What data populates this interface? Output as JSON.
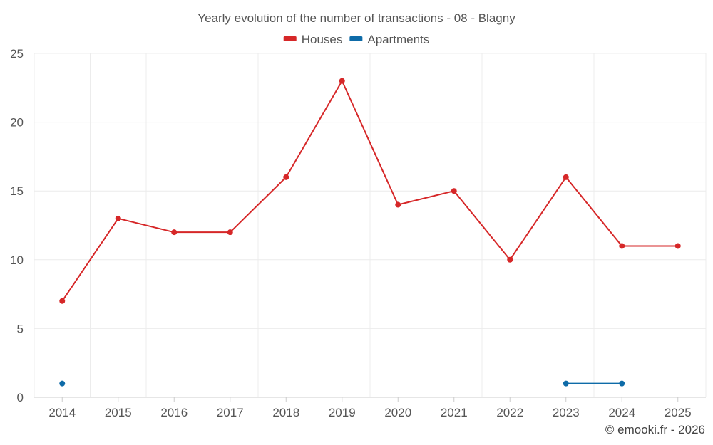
{
  "chart_data": {
    "type": "line",
    "title": "Yearly evolution of the number of transactions - 08 - Blagny",
    "xlabel": "",
    "ylabel": "",
    "categories": [
      "2014",
      "2015",
      "2016",
      "2017",
      "2018",
      "2019",
      "2020",
      "2021",
      "2022",
      "2023",
      "2024",
      "2025"
    ],
    "ylim": [
      0,
      25
    ],
    "yticks": [
      0,
      5,
      10,
      15,
      20,
      25
    ],
    "grid": true,
    "legend_position": "top-center",
    "series": [
      {
        "name": "Houses",
        "color": "#d62728",
        "values": [
          7,
          13,
          12,
          12,
          16,
          23,
          14,
          15,
          10,
          16,
          11,
          11
        ]
      },
      {
        "name": "Apartments",
        "color": "#0e6ba8",
        "values": [
          1,
          null,
          null,
          null,
          null,
          null,
          null,
          null,
          null,
          1,
          1,
          null
        ]
      }
    ]
  },
  "credit": "© emooki.fr - 2026"
}
